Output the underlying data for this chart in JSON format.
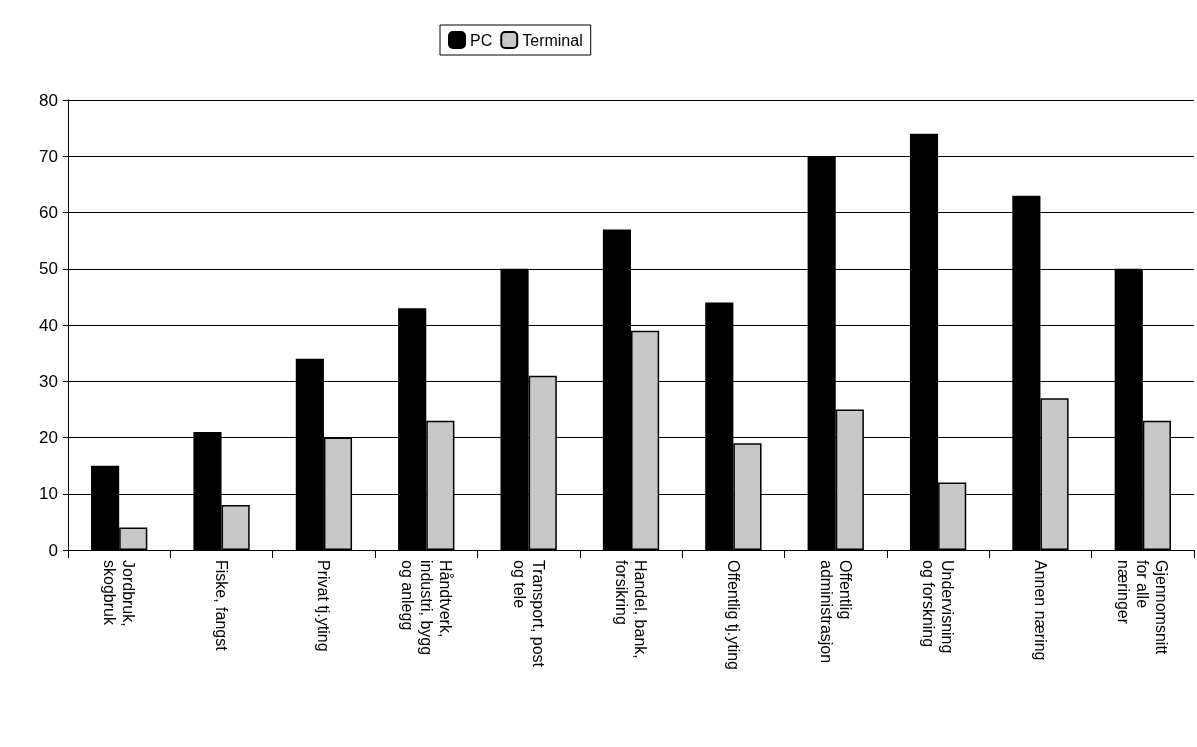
{
  "chart_data": {
    "type": "bar",
    "categories": [
      "Jordbruk,\nskogbruk",
      "Fiske, fangst",
      "Privat tj.yting",
      "Håndtverk,\nindustri, bygg\nog anlegg",
      "Transport, post\nog tele",
      "Handel, bank,\nforsikring",
      "Offentlig tj.yting",
      "Offentlig\nadministrasjon",
      "Undervisning\nog forskning",
      "Annen næring",
      "Gjennomsnitt\nfor alle\nnæringer"
    ],
    "series": [
      {
        "name": "PC",
        "color": "#000000",
        "values": [
          15,
          21,
          34,
          43,
          50,
          57,
          44,
          70,
          74,
          63,
          50
        ]
      },
      {
        "name": "Terminal",
        "color": "#c8c8c8",
        "values": [
          4,
          8,
          20,
          23,
          31,
          39,
          19,
          25,
          12,
          27,
          23
        ]
      }
    ],
    "ylim": [
      0,
      80
    ],
    "yticks": [
      0,
      10,
      20,
      30,
      40,
      50,
      60,
      70,
      80
    ],
    "grid": "y",
    "legend": "top"
  }
}
